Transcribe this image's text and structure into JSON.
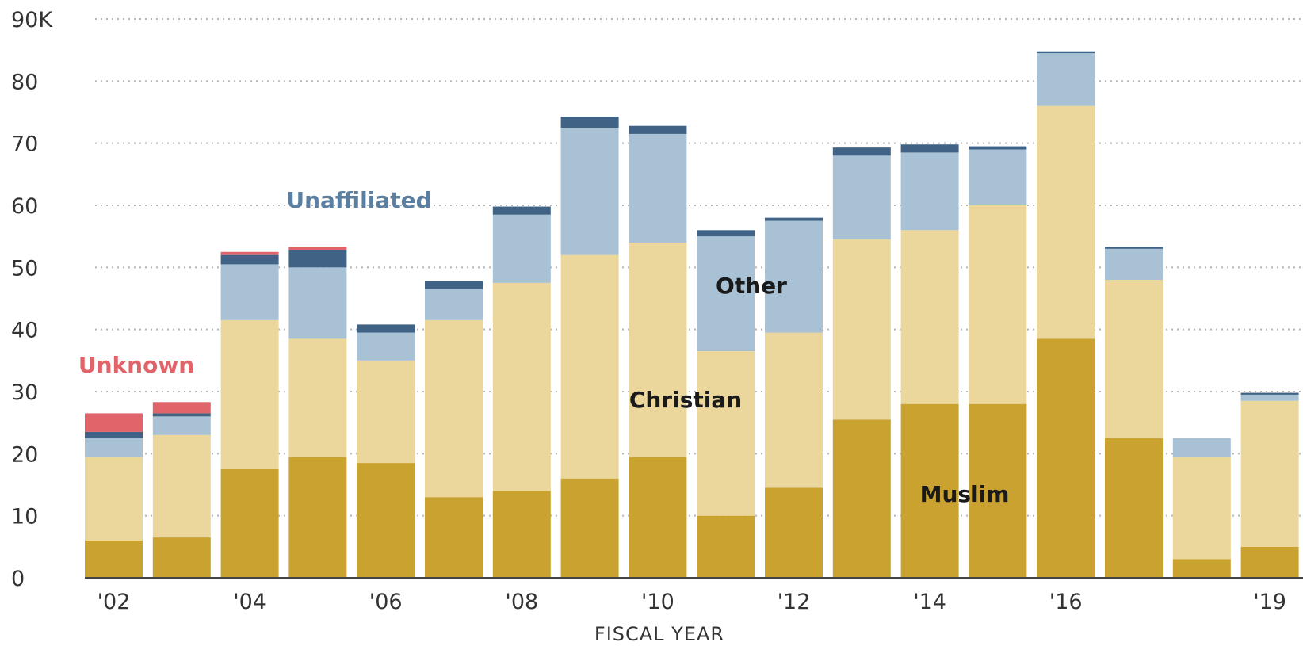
{
  "chart_data": {
    "type": "bar",
    "stacked": true,
    "title": "",
    "xlabel": "FISCAL YEAR",
    "ylabel": "",
    "ylim": [
      0,
      90
    ],
    "grid": true,
    "y_ticks": [
      "0",
      "10",
      "20",
      "30",
      "40",
      "50",
      "60",
      "70",
      "80",
      "90K"
    ],
    "categories": [
      "2002",
      "2003",
      "2004",
      "2005",
      "2006",
      "2007",
      "2008",
      "2009",
      "2010",
      "2011",
      "2012",
      "2013",
      "2014",
      "2015",
      "2016",
      "2017",
      "2018",
      "2019"
    ],
    "x_tick_labels": [
      "'02",
      "",
      "'04",
      "",
      "'06",
      "",
      "'08",
      "",
      "'10",
      "",
      "'12",
      "",
      "'14",
      "",
      "'16",
      "",
      "",
      "'19"
    ],
    "series": [
      {
        "name": "Muslim",
        "color": "#c9a22f",
        "values": [
          6,
          6.5,
          17.5,
          19.5,
          18.5,
          13,
          14,
          16,
          19.5,
          10,
          14.5,
          25.5,
          28,
          28,
          38.5,
          22.5,
          3,
          5
        ]
      },
      {
        "name": "Christian",
        "color": "#ebd79b",
        "values": [
          13.5,
          16.5,
          24,
          19,
          16.5,
          28.5,
          33.5,
          36,
          34.5,
          26.5,
          25,
          29,
          28,
          32,
          37.5,
          25.5,
          16.5,
          23.5
        ]
      },
      {
        "name": "Other",
        "color": "#a9c1d5",
        "values": [
          3,
          3,
          9,
          11.5,
          4.5,
          5,
          11,
          20.5,
          17.5,
          18.5,
          18,
          13.5,
          12.5,
          9,
          8.5,
          5,
          3,
          1
        ]
      },
      {
        "name": "Unaffiliated",
        "color": "#3f6285",
        "values": [
          1,
          0.5,
          1.5,
          2.8,
          1.3,
          1.3,
          1.3,
          1.8,
          1.3,
          1,
          0.5,
          1.3,
          1.3,
          0.5,
          0.3,
          0.3,
          0,
          0.3
        ]
      },
      {
        "name": "Unknown",
        "color": "#e0646a",
        "values": [
          3,
          1.8,
          0.5,
          0.5,
          0,
          0,
          0,
          0,
          0,
          0,
          0,
          0,
          0,
          0,
          0,
          0,
          0,
          0
        ]
      }
    ],
    "annotations": [
      {
        "text": "Unaffiliated",
        "series": "Unaffiliated"
      },
      {
        "text": "Unknown",
        "series": "Unknown"
      },
      {
        "text": "Other",
        "series": "Other"
      },
      {
        "text": "Christian",
        "series": "Christian"
      },
      {
        "text": "Muslim",
        "series": "Muslim"
      }
    ]
  }
}
